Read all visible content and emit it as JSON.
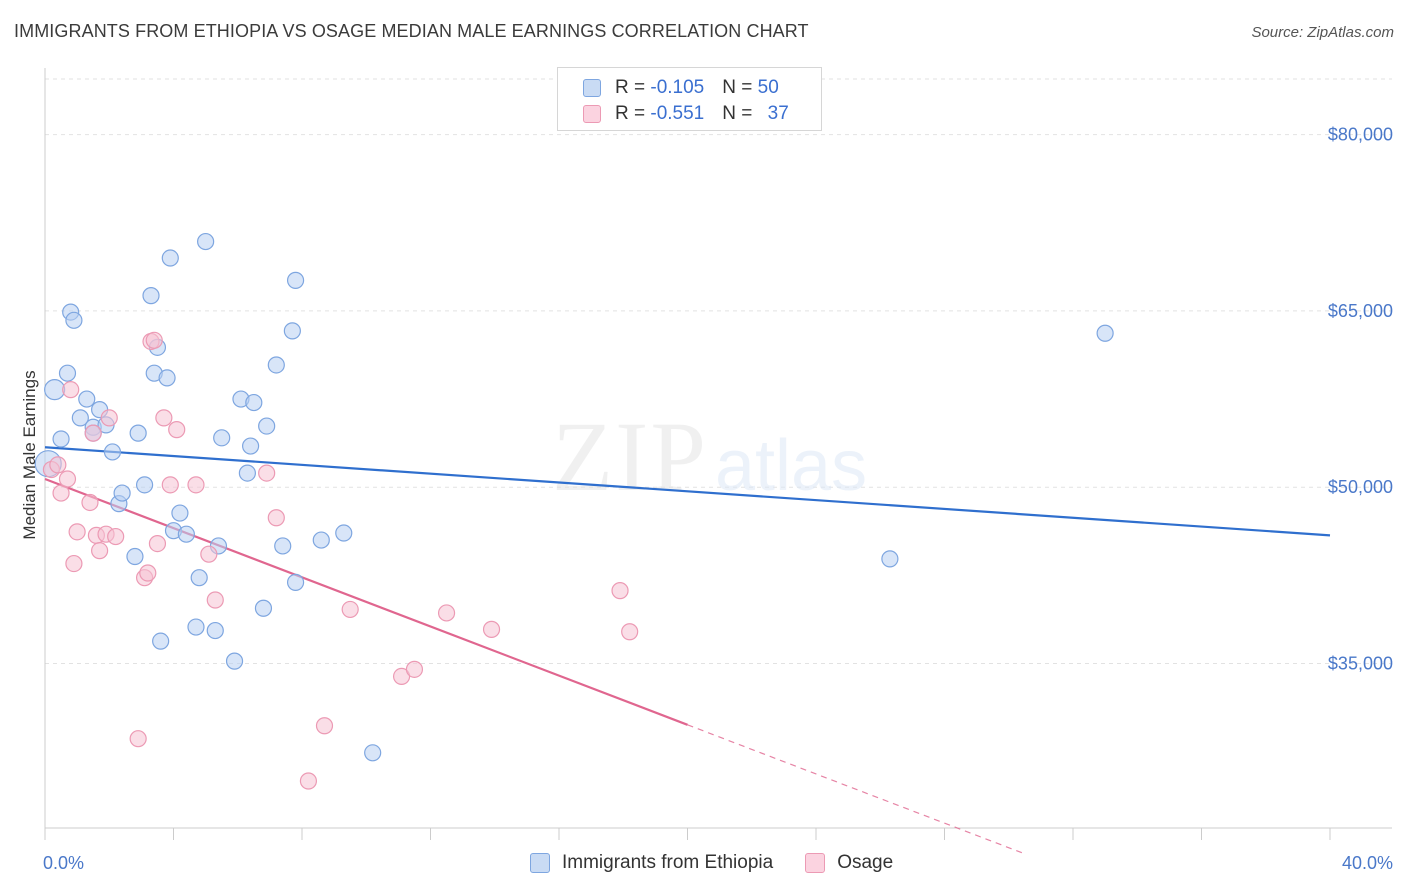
{
  "title": "IMMIGRANTS FROM ETHIOPIA VS OSAGE MEDIAN MALE EARNINGS CORRELATION CHART",
  "source": "Source: ZipAtlas.com",
  "watermark": {
    "zip": "ZIP",
    "atlas": "atlas"
  },
  "colors": {
    "blue_fill": "#b8d0f2",
    "blue_stroke": "#7ea6e0",
    "blue_line": "#2f6fce",
    "pink_fill": "#f6c3d3",
    "pink_stroke": "#ec9ab4",
    "pink_line": "#e0668f",
    "grid": "#e2e2e2",
    "tick_label": "#4a78c9"
  },
  "legend": {
    "rows": [
      {
        "r_label": "R = ",
        "r_value": "-0.105",
        "n_label": "N = ",
        "n_value": "50"
      },
      {
        "r_label": "R = ",
        "r_value": "-0.551",
        "n_label": "N = ",
        "n_value": "37"
      }
    ]
  },
  "bottom_legend": [
    "Immigrants from Ethiopia",
    "Osage"
  ],
  "chart_data": {
    "type": "scatter",
    "title": "IMMIGRANTS FROM ETHIOPIA VS OSAGE MEDIAN MALE EARNINGS CORRELATION CHART",
    "xlabel": "",
    "ylabel": "Median Male Earnings",
    "xlim": [
      0,
      40
    ],
    "ylim": [
      21000,
      85500
    ],
    "x_tick_labels": [
      "0.0%",
      "40.0%"
    ],
    "y_ticks": [
      35000,
      50000,
      65000,
      80000
    ],
    "y_tick_labels": [
      "$35,000",
      "$50,000",
      "$65,000",
      "$80,000"
    ],
    "grid": true,
    "legend_position": "top-center",
    "series": [
      {
        "name": "Immigrants from Ethiopia",
        "r": -0.105,
        "n": 50,
        "trend": {
          "x0": 0,
          "y0": 53400,
          "x1": 40,
          "y1": 45900,
          "solid_to": 40
        },
        "points": [
          [
            0.1,
            52000
          ],
          [
            0.3,
            58300
          ],
          [
            0.5,
            54100
          ],
          [
            0.7,
            59700
          ],
          [
            0.8,
            64900
          ],
          [
            0.9,
            64200
          ],
          [
            1.1,
            55900
          ],
          [
            1.3,
            57500
          ],
          [
            1.5,
            55100
          ],
          [
            1.5,
            54600
          ],
          [
            1.7,
            56600
          ],
          [
            1.9,
            55300
          ],
          [
            2.1,
            53000
          ],
          [
            2.3,
            48600
          ],
          [
            2.4,
            49500
          ],
          [
            2.8,
            44100
          ],
          [
            2.9,
            54600
          ],
          [
            3.1,
            50200
          ],
          [
            3.3,
            66300
          ],
          [
            3.4,
            59700
          ],
          [
            3.5,
            61900
          ],
          [
            3.6,
            36900
          ],
          [
            3.8,
            59300
          ],
          [
            3.9,
            69500
          ],
          [
            4.0,
            46300
          ],
          [
            4.2,
            47800
          ],
          [
            4.4,
            46000
          ],
          [
            4.7,
            38100
          ],
          [
            4.8,
            42300
          ],
          [
            5.0,
            70900
          ],
          [
            5.3,
            37800
          ],
          [
            5.4,
            45000
          ],
          [
            5.5,
            54200
          ],
          [
            5.9,
            35200
          ],
          [
            6.1,
            57500
          ],
          [
            6.3,
            51200
          ],
          [
            6.4,
            53500
          ],
          [
            6.5,
            57200
          ],
          [
            6.8,
            39700
          ],
          [
            6.9,
            55200
          ],
          [
            7.2,
            60400
          ],
          [
            7.4,
            45000
          ],
          [
            7.7,
            63300
          ],
          [
            7.8,
            41900
          ],
          [
            7.8,
            67600
          ],
          [
            8.6,
            45500
          ],
          [
            9.3,
            46100
          ],
          [
            10.2,
            27400
          ],
          [
            26.3,
            43900
          ],
          [
            33.0,
            63100
          ]
        ]
      },
      {
        "name": "Osage",
        "r": -0.551,
        "n": 37,
        "trend": {
          "x0": 0,
          "y0": 50700,
          "x1": 30.5,
          "y1": 18800,
          "solid_to": 20.0
        },
        "points": [
          [
            0.2,
            51500
          ],
          [
            0.4,
            51900
          ],
          [
            0.5,
            49500
          ],
          [
            0.7,
            50700
          ],
          [
            0.8,
            58300
          ],
          [
            0.9,
            43500
          ],
          [
            1.0,
            46200
          ],
          [
            1.4,
            48700
          ],
          [
            1.5,
            54600
          ],
          [
            1.6,
            45900
          ],
          [
            1.7,
            44600
          ],
          [
            1.9,
            46000
          ],
          [
            2.0,
            55900
          ],
          [
            2.2,
            45800
          ],
          [
            2.9,
            28600
          ],
          [
            3.1,
            42300
          ],
          [
            3.2,
            42700
          ],
          [
            3.3,
            62400
          ],
          [
            3.4,
            62500
          ],
          [
            3.5,
            45200
          ],
          [
            3.7,
            55900
          ],
          [
            3.9,
            50200
          ],
          [
            4.1,
            54900
          ],
          [
            4.7,
            50200
          ],
          [
            5.1,
            44300
          ],
          [
            5.3,
            40400
          ],
          [
            6.9,
            51200
          ],
          [
            7.2,
            47400
          ],
          [
            8.2,
            25000
          ],
          [
            8.7,
            29700
          ],
          [
            9.5,
            39600
          ],
          [
            11.1,
            33900
          ],
          [
            11.5,
            34500
          ],
          [
            12.5,
            39300
          ],
          [
            13.9,
            37900
          ],
          [
            17.9,
            41200
          ],
          [
            18.2,
            37700
          ]
        ]
      }
    ]
  }
}
